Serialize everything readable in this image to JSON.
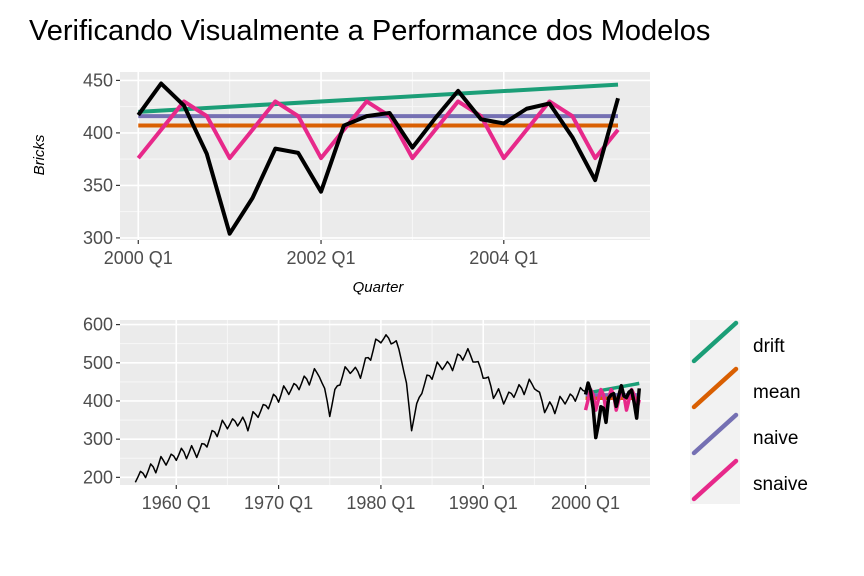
{
  "chart_data": [
    {
      "type": "line",
      "title": "Verificando Visualmente a Performance dos Modelos",
      "xlabel": "Quarter",
      "ylabel": "Bricks",
      "xlim": [
        1999.8,
        2005.6
      ],
      "ylim": [
        298,
        458
      ],
      "yticks": [
        300,
        350,
        400,
        450
      ],
      "xticks": [
        {
          "value": 2000.0,
          "label": "2000 Q1"
        },
        {
          "value": 2002.0,
          "label": "2002 Q1"
        },
        {
          "value": 2004.0,
          "label": "2004 Q1"
        }
      ],
      "grid": true,
      "series": [
        {
          "name": "drift",
          "color": "#1B9E77",
          "x": [
            2000.0,
            2005.25
          ],
          "y": [
            420,
            446
          ]
        },
        {
          "name": "mean",
          "color": "#D95F02",
          "x": [
            2000.0,
            2005.25
          ],
          "y": [
            407,
            407
          ]
        },
        {
          "name": "naive",
          "color": "#7570B3",
          "x": [
            2000.0,
            2005.25
          ],
          "y": [
            416,
            416
          ]
        },
        {
          "name": "snaive",
          "color": "#E7298A",
          "x": [
            2000.0,
            2000.25,
            2000.5,
            2000.75,
            2001.0,
            2001.25,
            2001.5,
            2001.75,
            2002.0,
            2002.25,
            2002.5,
            2002.75,
            2003.0,
            2003.25,
            2003.5,
            2003.75,
            2004.0,
            2004.25,
            2004.5,
            2004.75,
            2005.0,
            2005.25
          ],
          "y": [
            376,
            403,
            430,
            416,
            376,
            403,
            430,
            416,
            376,
            403,
            430,
            416,
            376,
            403,
            430,
            416,
            376,
            403,
            430,
            416,
            376,
            403
          ]
        },
        {
          "name": "",
          "color": "#000000",
          "x": [
            2000.0,
            2000.25,
            2000.5,
            2000.75,
            2001.0,
            2001.25,
            2001.5,
            2001.75,
            2002.0,
            2002.25,
            2002.5,
            2002.75,
            2003.0,
            2003.25,
            2003.5,
            2003.75,
            2004.0,
            2004.25,
            2004.5,
            2004.75,
            2005.0,
            2005.25
          ],
          "y": [
            417,
            447,
            426,
            380,
            304,
            338,
            385,
            381,
            344,
            407,
            416,
            419,
            386,
            414,
            440,
            413,
            409,
            423,
            428,
            396,
            355,
            433
          ]
        }
      ]
    },
    {
      "type": "line",
      "title": "",
      "xlabel": "",
      "ylabel": "",
      "xlim": [
        1954.5,
        2006.3
      ],
      "ylim": [
        180,
        612
      ],
      "yticks": [
        200,
        300,
        400,
        500,
        600
      ],
      "xticks": [
        {
          "value": 1960.0,
          "label": "1960 Q1"
        },
        {
          "value": 1970.0,
          "label": "1970 Q1"
        },
        {
          "value": 1980.0,
          "label": "1980 Q1"
        },
        {
          "value": 1990.0,
          "label": "1990 Q1"
        },
        {
          "value": 2000.0,
          "label": "2000 Q1"
        }
      ],
      "grid": true,
      "history": {
        "color": "#000000",
        "x": [
          1956.0,
          1957.0,
          1958.0,
          1959.0,
          1960.0,
          1961.0,
          1962.0,
          1963.0,
          1964.0,
          1965.0,
          1966.0,
          1967.0,
          1968.0,
          1969.0,
          1970.0,
          1971.0,
          1972.0,
          1973.0,
          1974.0,
          1975.0,
          1976.0,
          1977.0,
          1978.0,
          1979.0,
          1980.0,
          1981.0,
          1982.0,
          1983.0,
          1984.0,
          1985.0,
          1986.0,
          1987.0,
          1988.0,
          1989.0,
          1990.0,
          1991.0,
          1992.0,
          1993.0,
          1994.0,
          1995.0,
          1996.0,
          1997.0,
          1998.0,
          1999.0,
          2000.0
        ],
        "y": [
          195,
          210,
          225,
          240,
          255,
          262,
          260,
          290,
          320,
          335,
          345,
          335,
          365,
          390,
          410,
          425,
          440,
          455,
          470,
          370,
          455,
          480,
          470,
          520,
          560,
          560,
          520,
          330,
          430,
          470,
          490,
          490,
          520,
          510,
          470,
          420,
          400,
          420,
          430,
          440,
          380,
          380,
          400,
          410,
          425
        ],
        "amplitude": 22
      },
      "legend": {
        "placement": "right",
        "items": [
          {
            "label": "drift",
            "color": "#1B9E77"
          },
          {
            "label": "mean",
            "color": "#D95F02"
          },
          {
            "label": "naive",
            "color": "#7570B3"
          },
          {
            "label": "snaive",
            "color": "#E7298A"
          }
        ]
      }
    }
  ]
}
